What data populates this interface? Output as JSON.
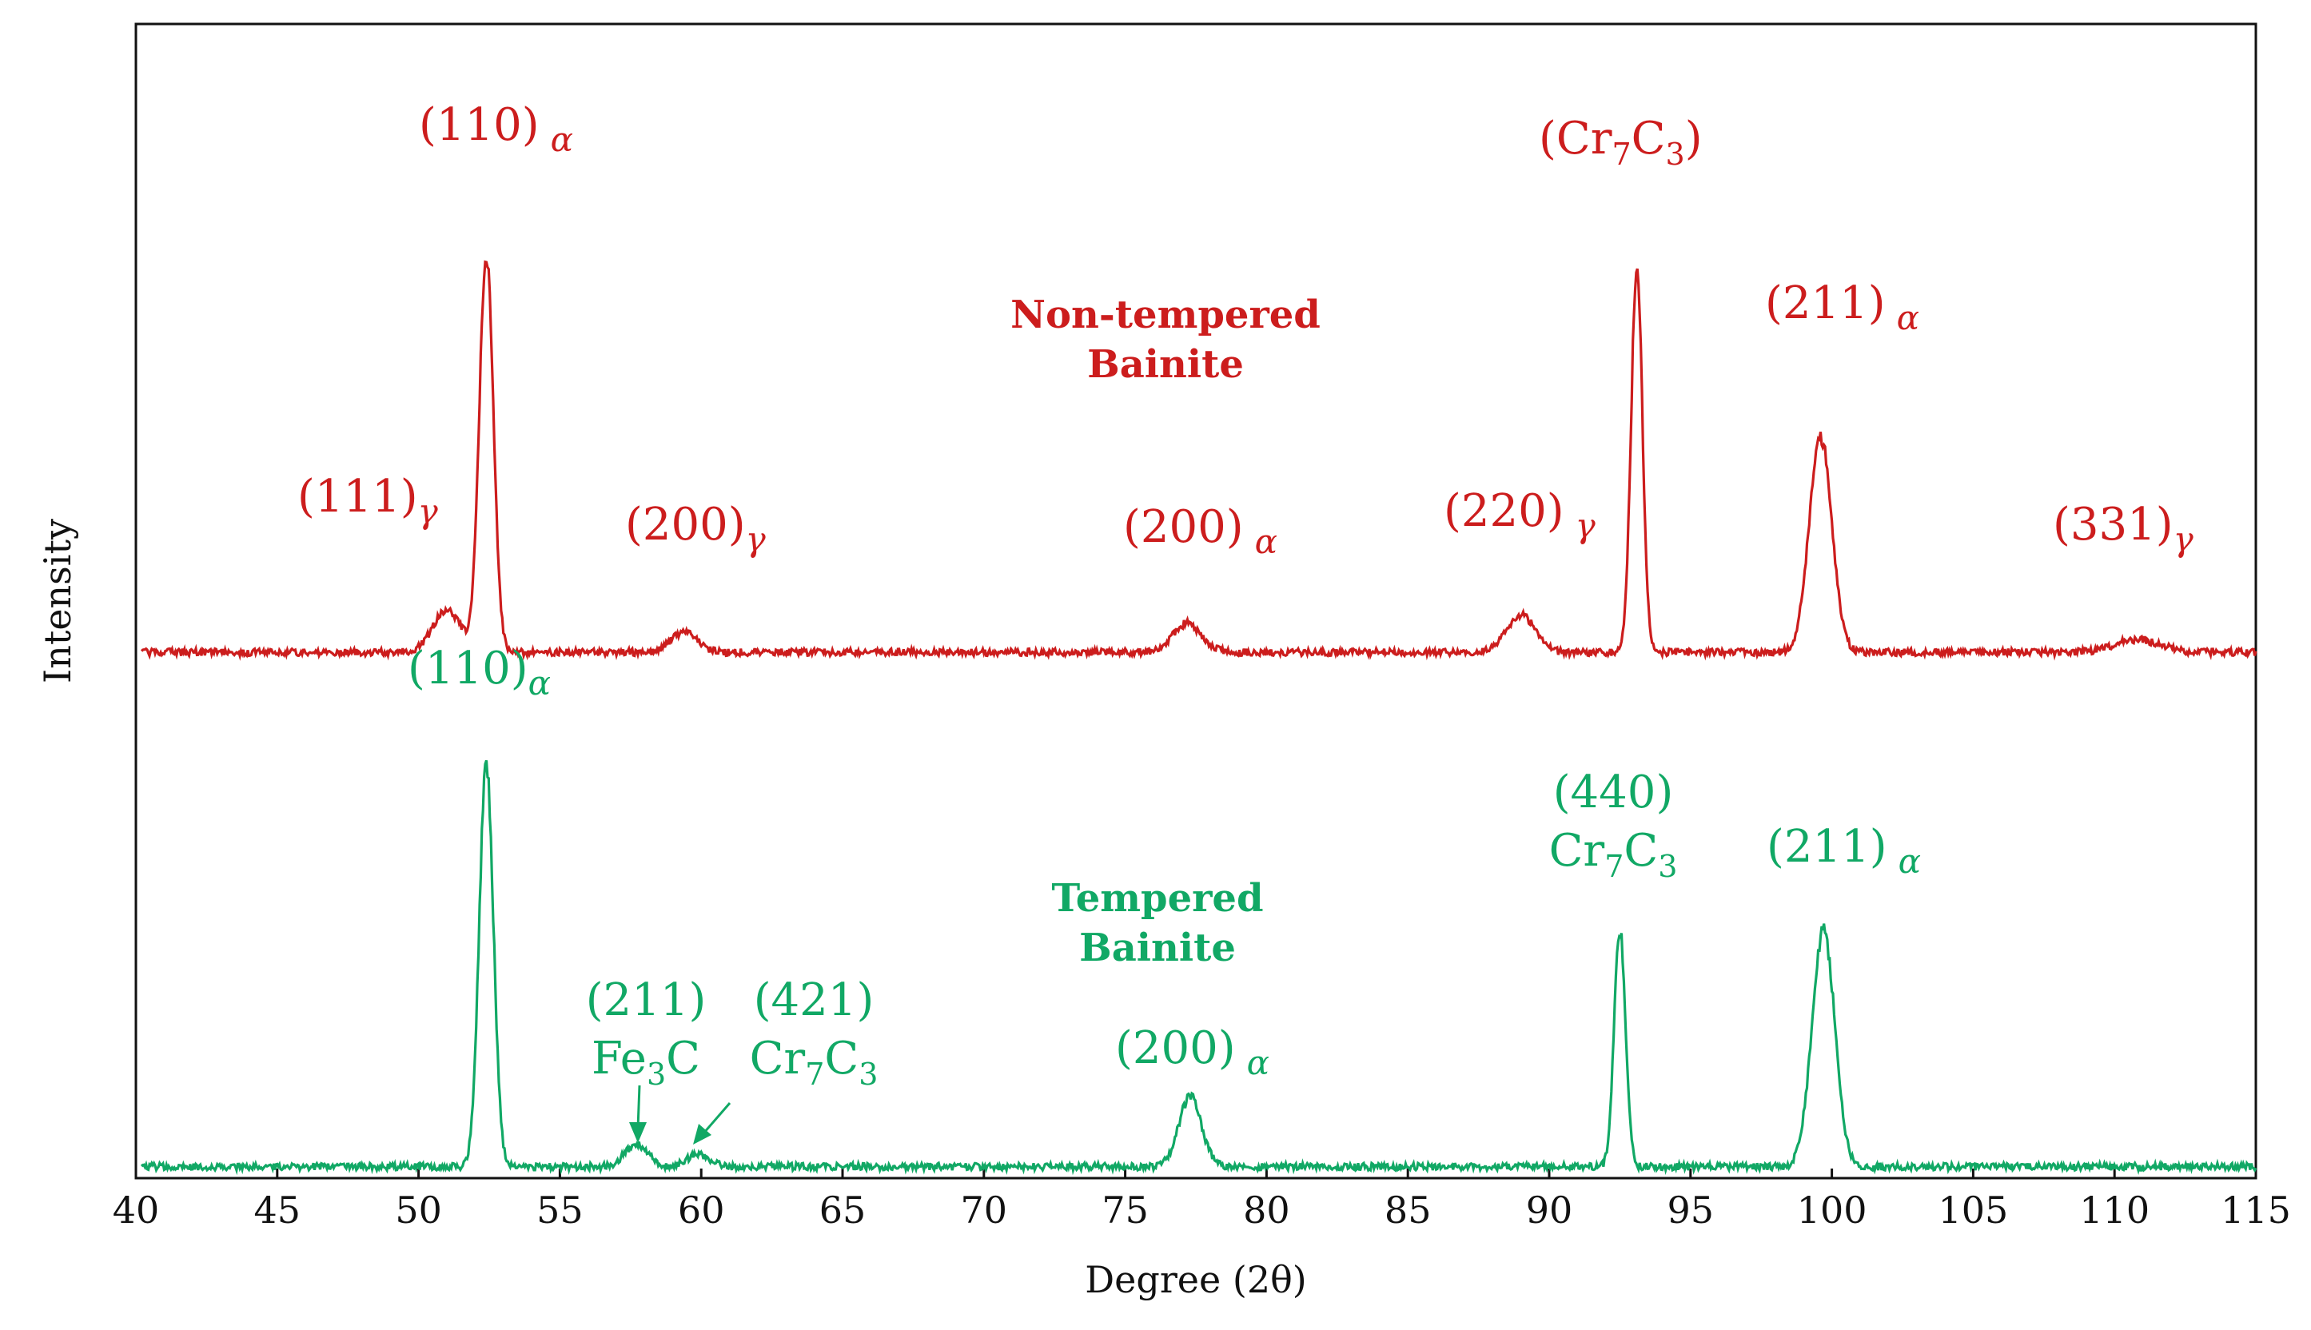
{
  "chart_data": {
    "type": "line",
    "title": "",
    "xlabel": "Degree (2θ)",
    "ylabel": "Intensity",
    "xlim": [
      40,
      115
    ],
    "ylim": [
      0,
      100
    ],
    "x_ticks": [
      40,
      45,
      50,
      55,
      60,
      65,
      70,
      75,
      80,
      85,
      90,
      95,
      100,
      105,
      110,
      115
    ],
    "colors": {
      "non_tempered": "#cc1d1d",
      "tempered": "#11a865",
      "axis": "#111111"
    },
    "series": [
      {
        "key": "non_tempered",
        "name": "Non-tempered Bainite",
        "legend_line1": "Non-tempered",
        "legend_line2": "Bainite",
        "baseline": 50.5,
        "peaks": [
          {
            "x": 51.0,
            "height": 4.0,
            "width": 0.5,
            "label_main": "(111)",
            "label_sub": "γ"
          },
          {
            "x": 52.4,
            "height": 38.0,
            "width": 0.25,
            "label_main": "(110)",
            "label_sub": "α"
          },
          {
            "x": 59.4,
            "height": 2.0,
            "width": 0.45,
            "label_main": "(200)",
            "label_sub": "γ"
          },
          {
            "x": 77.2,
            "height": 2.8,
            "width": 0.5,
            "label_main": "(200)",
            "label_sub": "α"
          },
          {
            "x": 89.0,
            "height": 3.6,
            "width": 0.5,
            "label_main": "(220)",
            "label_sub": "γ"
          },
          {
            "x": 93.1,
            "height": 37.0,
            "width": 0.2,
            "label_main": "(Cr",
            "label_sub": "7",
            "label_rest": "C",
            "label_sub2": "3",
            "label_end": ")"
          },
          {
            "x": 99.6,
            "height": 21.0,
            "width": 0.4,
            "label_main": "(211)",
            "label_sub": "α"
          },
          {
            "x": 110.8,
            "height": 1.2,
            "width": 0.8,
            "label_main": "(331)",
            "label_sub": "γ"
          }
        ]
      },
      {
        "key": "tempered",
        "name": "Tempered Bainite",
        "legend_line1": "Tempered",
        "legend_line2": "Bainite",
        "baseline": 0.8,
        "peaks": [
          {
            "x": 52.4,
            "height": 39.0,
            "width": 0.25,
            "label_main": "(110)",
            "label_sub": "α"
          },
          {
            "x": 57.7,
            "height": 2.2,
            "width": 0.4,
            "label_line1": "(211)",
            "label_line2_a": "Fe",
            "label_line2_sub": "3",
            "label_line2_b": "C"
          },
          {
            "x": 59.9,
            "height": 1.2,
            "width": 0.4,
            "label_line1": "(421)",
            "label_line2_a": "Cr",
            "label_line2_sub": "7",
            "label_line2_b": "C",
            "label_line2_sub2": "3"
          },
          {
            "x": 77.3,
            "height": 6.8,
            "width": 0.4,
            "label_main": "(200)",
            "label_sub": "α"
          },
          {
            "x": 92.5,
            "height": 23.0,
            "width": 0.2,
            "label_line1": "(440)",
            "label_line2_a": "Cr",
            "label_line2_sub": "7",
            "label_line2_b": "C",
            "label_line2_sub2": "3"
          },
          {
            "x": 99.7,
            "height": 23.0,
            "width": 0.4,
            "label_main": "(211)",
            "label_sub": "α"
          }
        ]
      }
    ]
  }
}
